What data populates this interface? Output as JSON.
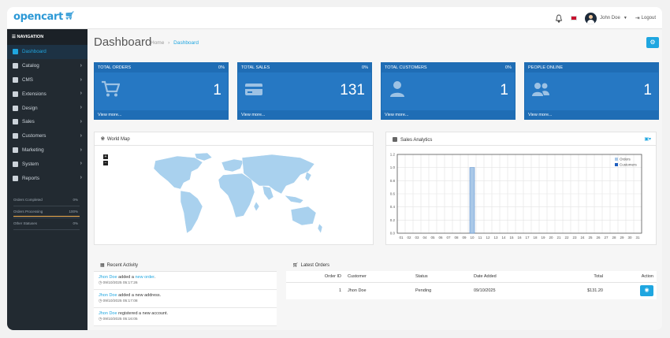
{
  "header": {
    "logo": "opencart",
    "user_name": "John Doe",
    "logout_label": "Logout"
  },
  "sidebar": {
    "nav_title": "NAVIGATION",
    "items": [
      {
        "label": "Dashboard",
        "icon": "home-icon",
        "active": true
      },
      {
        "label": "Catalog",
        "icon": "tag-icon"
      },
      {
        "label": "CMS",
        "icon": "folder-icon"
      },
      {
        "label": "Extensions",
        "icon": "puzzle-icon"
      },
      {
        "label": "Design",
        "icon": "monitor-icon"
      },
      {
        "label": "Sales",
        "icon": "cart-icon"
      },
      {
        "label": "Customers",
        "icon": "user-icon"
      },
      {
        "label": "Marketing",
        "icon": "share-icon"
      },
      {
        "label": "System",
        "icon": "gear-icon"
      },
      {
        "label": "Reports",
        "icon": "bar-chart-icon"
      }
    ],
    "stats": [
      {
        "label": "Orders Completed",
        "value": "0%",
        "fill": 0
      },
      {
        "label": "Orders Processing",
        "value": "100%",
        "fill": 1
      },
      {
        "label": "Other Statuses",
        "value": "0%",
        "fill": 0
      }
    ]
  },
  "page": {
    "title": "Dashboard",
    "breadcrumb": [
      "Home",
      "Dashboard"
    ]
  },
  "tiles": [
    {
      "label": "TOTAL ORDERS",
      "pct": "0%",
      "value": "1",
      "more": "View more...",
      "icon": "cart-icon"
    },
    {
      "label": "TOTAL SALES",
      "pct": "0%",
      "value": "131",
      "more": "View more...",
      "icon": "credit-card-icon"
    },
    {
      "label": "TOTAL CUSTOMERS",
      "pct": "0%",
      "value": "1",
      "more": "View more...",
      "icon": "user-icon"
    },
    {
      "label": "PEOPLE ONLINE",
      "pct": "",
      "value": "1",
      "more": "View more...",
      "icon": "users-icon"
    }
  ],
  "world_map": {
    "title": "World Map",
    "zoom_in": "+",
    "zoom_out": "−"
  },
  "chart_data": {
    "type": "bar",
    "title": "Sales Analytics",
    "categories": [
      "01",
      "02",
      "03",
      "04",
      "05",
      "06",
      "07",
      "08",
      "09",
      "10",
      "11",
      "12",
      "13",
      "14",
      "15",
      "16",
      "17",
      "18",
      "19",
      "20",
      "21",
      "22",
      "23",
      "24",
      "25",
      "26",
      "27",
      "28",
      "29",
      "30",
      "31"
    ],
    "series": [
      {
        "name": "Orders",
        "values": [
          0,
          0,
          0,
          0,
          0,
          0,
          0,
          0,
          0,
          1,
          0,
          0,
          0,
          0,
          0,
          0,
          0,
          0,
          0,
          0,
          0,
          0,
          0,
          0,
          0,
          0,
          0,
          0,
          0,
          0,
          0
        ],
        "color": "#a9c8e8"
      },
      {
        "name": "Customers",
        "values": [
          0,
          0,
          0,
          0,
          0,
          0,
          0,
          0,
          0,
          0,
          0,
          0,
          0,
          0,
          0,
          0,
          0,
          0,
          0,
          0,
          0,
          0,
          0,
          0,
          0,
          0,
          0,
          0,
          0,
          0,
          0
        ],
        "color": "#1f5fbf"
      }
    ],
    "yticks": [
      "0.0",
      "0.2",
      "0.4",
      "0.6",
      "0.8",
      "1.0",
      "1.2"
    ],
    "ylim": [
      0,
      1.2
    ],
    "grid": true,
    "legend": "top-right"
  },
  "recent_activity": {
    "title": "Recent Activity",
    "items": [
      {
        "name": "Jhon Doe",
        "mid": " added a ",
        "link": "new order",
        "tail": ".",
        "time": "09/10/2025 05:17:26"
      },
      {
        "name": "Jhon Doe",
        "mid": " added a new address.",
        "link": "",
        "tail": "",
        "time": "09/10/2025 05:17:08"
      },
      {
        "name": "Jhon Doe",
        "mid": " registered a new account.",
        "link": "",
        "tail": "",
        "time": "09/10/2025 05:16:05"
      }
    ]
  },
  "latest_orders": {
    "title": "Latest Orders",
    "columns": [
      "Order ID",
      "Customer",
      "Status",
      "Date Added",
      "Total",
      "Action"
    ],
    "rows": [
      {
        "order_id": "1",
        "customer": "Jhon Doe",
        "status": "Pending",
        "date": "09/10/2025",
        "total": "$131.20"
      }
    ]
  }
}
